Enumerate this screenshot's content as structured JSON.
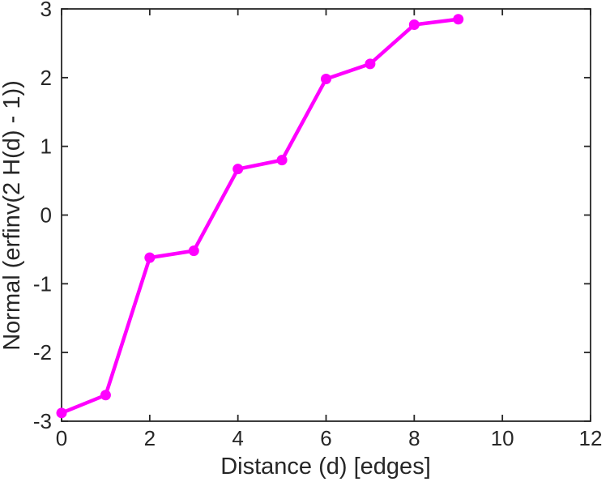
{
  "chart_data": {
    "type": "line",
    "title": "",
    "xlabel": "Distance (d) [edges]",
    "ylabel": "Normal (erfinv(2 H(d) - 1))",
    "x": [
      0,
      1,
      2,
      3,
      4,
      5,
      6,
      7,
      8,
      9
    ],
    "y": [
      -2.88,
      -2.62,
      -0.62,
      -0.52,
      0.67,
      0.8,
      1.98,
      2.2,
      2.77,
      2.85
    ],
    "xlim": [
      0,
      12
    ],
    "ylim": [
      -3,
      3
    ],
    "xticks": [
      0,
      2,
      4,
      6,
      8,
      10,
      12
    ],
    "yticks": [
      -3,
      -2,
      -1,
      0,
      1,
      2,
      3
    ],
    "grid": false,
    "legend": "none",
    "line_color": "#FF00FF",
    "marker": "circle",
    "axis_color": "#262626",
    "background": "#FFFFFF"
  }
}
